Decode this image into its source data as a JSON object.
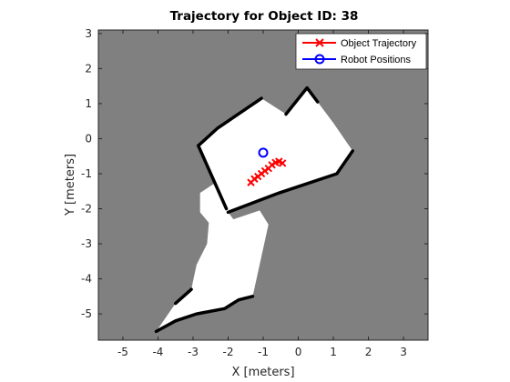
{
  "chart_data": {
    "type": "scatter",
    "title": "Trajectory for Object ID: 38",
    "xlabel": "X [meters]",
    "ylabel": "Y [meters]",
    "xlim": [
      -5.7,
      3.7
    ],
    "ylim": [
      -5.75,
      3.1
    ],
    "xticks": [
      -5,
      -4,
      -3,
      -2,
      -1,
      0,
      1,
      2,
      3
    ],
    "yticks": [
      -5,
      -4,
      -3,
      -2,
      -1,
      0,
      1,
      2,
      3
    ],
    "grid": false,
    "legend_position": "top-right",
    "background_color": "#808080",
    "map_free_color": "#ffffff",
    "map_wall_color": "#000000",
    "map_free_regions": [
      [
        [
          -1.05,
          1.15
        ],
        [
          -0.35,
          0.7
        ],
        [
          0.25,
          1.45
        ],
        [
          0.55,
          1.05
        ],
        [
          1.0,
          0.45
        ],
        [
          1.55,
          -0.35
        ],
        [
          1.1,
          -1.0
        ],
        [
          -0.55,
          -1.55
        ],
        [
          -2.0,
          -2.1
        ],
        [
          -2.85,
          -0.2
        ],
        [
          -2.3,
          0.3
        ]
      ],
      [
        [
          -2.8,
          -1.55
        ],
        [
          -2.35,
          -1.25
        ],
        [
          -2.0,
          -2.1
        ],
        [
          -1.85,
          -2.3
        ],
        [
          -1.1,
          -2.05
        ],
        [
          -0.85,
          -2.45
        ],
        [
          -1.3,
          -4.5
        ],
        [
          -1.7,
          -4.6
        ],
        [
          -2.1,
          -4.85
        ],
        [
          -2.9,
          -5.0
        ],
        [
          -3.5,
          -5.2
        ],
        [
          -4.05,
          -5.5
        ],
        [
          -3.5,
          -4.7
        ],
        [
          -3.05,
          -4.3
        ],
        [
          -2.9,
          -3.6
        ],
        [
          -2.6,
          -3.0
        ],
        [
          -2.55,
          -2.4
        ],
        [
          -2.8,
          -2.1
        ]
      ]
    ],
    "map_walls": [
      [
        [
          -2.85,
          -0.2
        ],
        [
          -2.3,
          0.3
        ],
        [
          -1.05,
          1.15
        ]
      ],
      [
        [
          -0.35,
          0.7
        ],
        [
          0.25,
          1.45
        ],
        [
          0.55,
          1.05
        ]
      ],
      [
        [
          1.55,
          -0.35
        ],
        [
          1.1,
          -1.0
        ],
        [
          -0.55,
          -1.55
        ],
        [
          -2.0,
          -2.1
        ]
      ],
      [
        [
          -2.85,
          -0.2
        ],
        [
          -2.05,
          -2.0
        ]
      ],
      [
        [
          -1.3,
          -4.5
        ],
        [
          -1.7,
          -4.6
        ],
        [
          -2.1,
          -4.85
        ],
        [
          -2.9,
          -5.0
        ],
        [
          -3.5,
          -5.2
        ],
        [
          -4.05,
          -5.5
        ]
      ],
      [
        [
          -3.5,
          -4.7
        ],
        [
          -3.05,
          -4.3
        ]
      ]
    ],
    "series": [
      {
        "name": "Object Trajectory",
        "color": "#ff0000",
        "marker": "x",
        "line": true,
        "x": [
          -1.35,
          -1.25,
          -1.15,
          -1.05,
          -0.95,
          -0.85,
          -0.75,
          -0.65,
          -0.55,
          -0.45
        ],
        "y": [
          -1.25,
          -1.15,
          -1.08,
          -1.0,
          -0.92,
          -0.85,
          -0.75,
          -0.68,
          -0.65,
          -0.7
        ]
      },
      {
        "name": "Robot Positions",
        "color": "#0000ff",
        "marker": "o",
        "line": false,
        "x": [
          -1.0
        ],
        "y": [
          -0.4
        ]
      }
    ]
  }
}
